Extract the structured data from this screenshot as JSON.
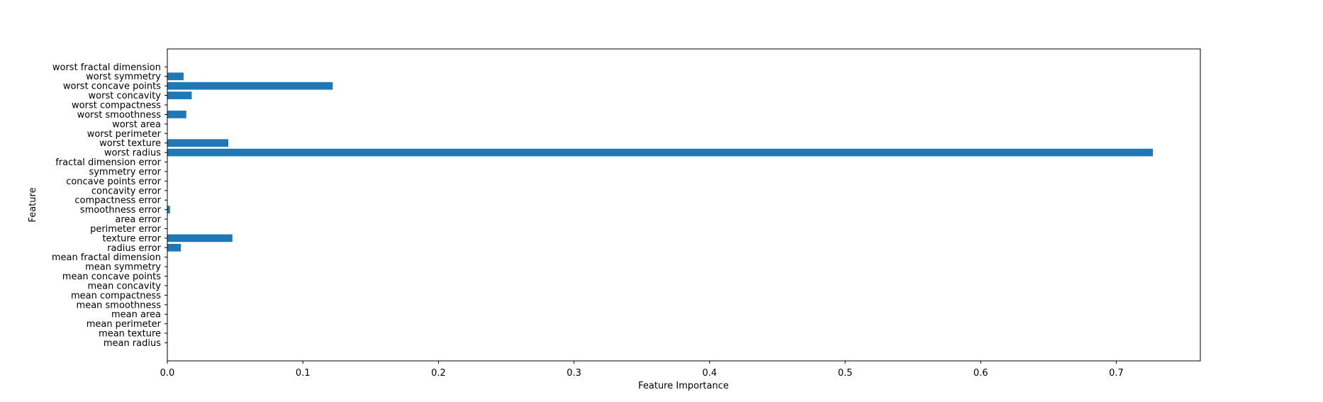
{
  "chart_data": {
    "type": "bar",
    "orientation": "horizontal",
    "title": "",
    "xlabel": "Feature Importance",
    "ylabel": "Feature",
    "xlim": [
      0,
      0.762
    ],
    "xticks": [
      "0.0",
      "0.1",
      "0.2",
      "0.3",
      "0.4",
      "0.5",
      "0.6",
      "0.7"
    ],
    "grid": false,
    "bar_color": "#1f77b4",
    "categories": [
      "mean radius",
      "mean texture",
      "mean perimeter",
      "mean area",
      "mean smoothness",
      "mean compactness",
      "mean concavity",
      "mean concave points",
      "mean symmetry",
      "mean fractal dimension",
      "radius error",
      "texture error",
      "perimeter error",
      "area error",
      "smoothness error",
      "compactness error",
      "concavity error",
      "concave points error",
      "symmetry error",
      "fractal dimension error",
      "worst radius",
      "worst texture",
      "worst perimeter",
      "worst area",
      "worst smoothness",
      "worst compactness",
      "worst concavity",
      "worst concave points",
      "worst symmetry",
      "worst fractal dimension"
    ],
    "values": [
      0,
      0,
      0,
      0,
      0,
      0,
      0,
      0,
      0,
      0,
      0.01,
      0.048,
      0,
      0,
      0.002,
      0,
      0,
      0,
      0,
      0,
      0.727,
      0.045,
      0,
      0,
      0.014,
      0,
      0.018,
      0.122,
      0.012,
      0
    ]
  }
}
